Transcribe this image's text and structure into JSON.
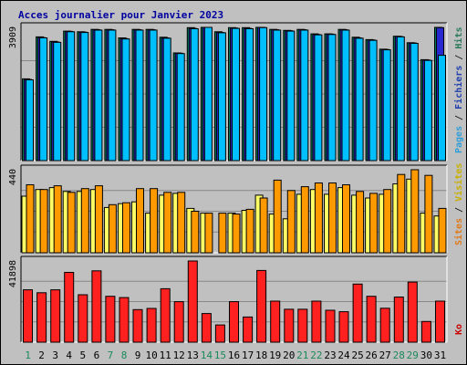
{
  "chart_data": {
    "type": "bar",
    "title": "Acces journalier pour Janvier 2023",
    "days": [
      "1",
      "2",
      "3",
      "4",
      "5",
      "6",
      "7",
      "8",
      "9",
      "10",
      "11",
      "12",
      "13",
      "14",
      "15",
      "16",
      "17",
      "18",
      "19",
      "20",
      "21",
      "22",
      "23",
      "24",
      "25",
      "26",
      "27",
      "28",
      "29",
      "30",
      "31"
    ],
    "weekend_days": [
      "1",
      "7",
      "8",
      "14",
      "15",
      "21",
      "22",
      "28",
      "29"
    ],
    "panels": [
      {
        "id": "top",
        "max_label": "3909",
        "ymax": 3909,
        "right_labels": [
          {
            "text": "Pages",
            "color": "#2f9ed8"
          },
          {
            "text": "Fichiers",
            "color": "#1f3fae"
          },
          {
            "text": "Hits",
            "color": "#2a7a5a"
          }
        ],
        "series": [
          {
            "name": "Hits",
            "color": "#00805c",
            "values": [
              2400,
              3630,
              3500,
              3800,
              3780,
              3850,
              3850,
              3600,
              3850,
              3850,
              3620,
              3160,
              3900,
              3909,
              3780,
              3900,
              3900,
              3909,
              3850,
              3820,
              3850,
              3720,
              3720,
              3850,
              3620,
              3550,
              3270,
              3650,
              3460,
              2960,
              3909
            ]
          },
          {
            "name": "Fichiers",
            "color": "#2828d0",
            "values": [
              2380,
              3610,
              3480,
              3790,
              3770,
              3840,
              3840,
              3580,
              3840,
              3840,
              3600,
              3150,
              3880,
              3909,
              3760,
              3890,
              3880,
              3909,
              3840,
              3810,
              3840,
              3700,
              3710,
              3840,
              3600,
              3540,
              3260,
              3640,
              3450,
              2950,
              3900
            ]
          },
          {
            "name": "Pages",
            "color": "#00bfff",
            "values": [
              2370,
              3600,
              3470,
              3780,
              3760,
              3830,
              3830,
              3570,
              3830,
              3830,
              3590,
              3140,
              3870,
              3909,
              3750,
              3880,
              3870,
              3900,
              3830,
              3800,
              3830,
              3690,
              3700,
              3830,
              3590,
              3530,
              3250,
              3630,
              3440,
              2940,
              3090
            ]
          }
        ]
      },
      {
        "id": "middle",
        "max_label": "440",
        "ymax": 440,
        "right_labels": [
          {
            "text": "Sites",
            "color": "#e07a1a"
          },
          {
            "text": "Visites",
            "color": "#c8b000"
          }
        ],
        "series": [
          {
            "name": "Visites",
            "color": "#ffff66",
            "values": [
              300,
              335,
              345,
              325,
              325,
              335,
              240,
              260,
              270,
              210,
              305,
              315,
              235,
              210,
              0,
              210,
              225,
              305,
              205,
              180,
              310,
              335,
              310,
              345,
              305,
              290,
              310,
              365,
              390,
              210,
              195
            ]
          },
          {
            "name": "Sites",
            "color": "#ff9900",
            "values": [
              360,
              335,
              355,
              320,
              340,
              355,
              255,
              265,
              340,
              340,
              320,
              320,
              220,
              210,
              210,
              205,
              230,
              290,
              385,
              330,
              350,
              370,
              370,
              360,
              325,
              315,
              335,
              415,
              440,
              410,
              235
            ]
          }
        ]
      },
      {
        "id": "bottom",
        "max_label": "41898",
        "ymax": 41898,
        "right_labels": [
          {
            "text": "Ko",
            "color": "#cc0000"
          }
        ],
        "series": [
          {
            "name": "Ko",
            "color": "#ff2020",
            "values": [
              27000,
              25500,
              27000,
              36000,
              24500,
              36800,
              23700,
              23000,
              16800,
              17400,
              27600,
              20900,
              41898,
              14800,
              8900,
              20900,
              13000,
              37000,
              21200,
              17000,
              17000,
              21200,
              16500,
              15700,
              30000,
              23700,
              17500,
              23300,
              31000,
              10700,
              21200
            ]
          }
        ]
      }
    ]
  }
}
